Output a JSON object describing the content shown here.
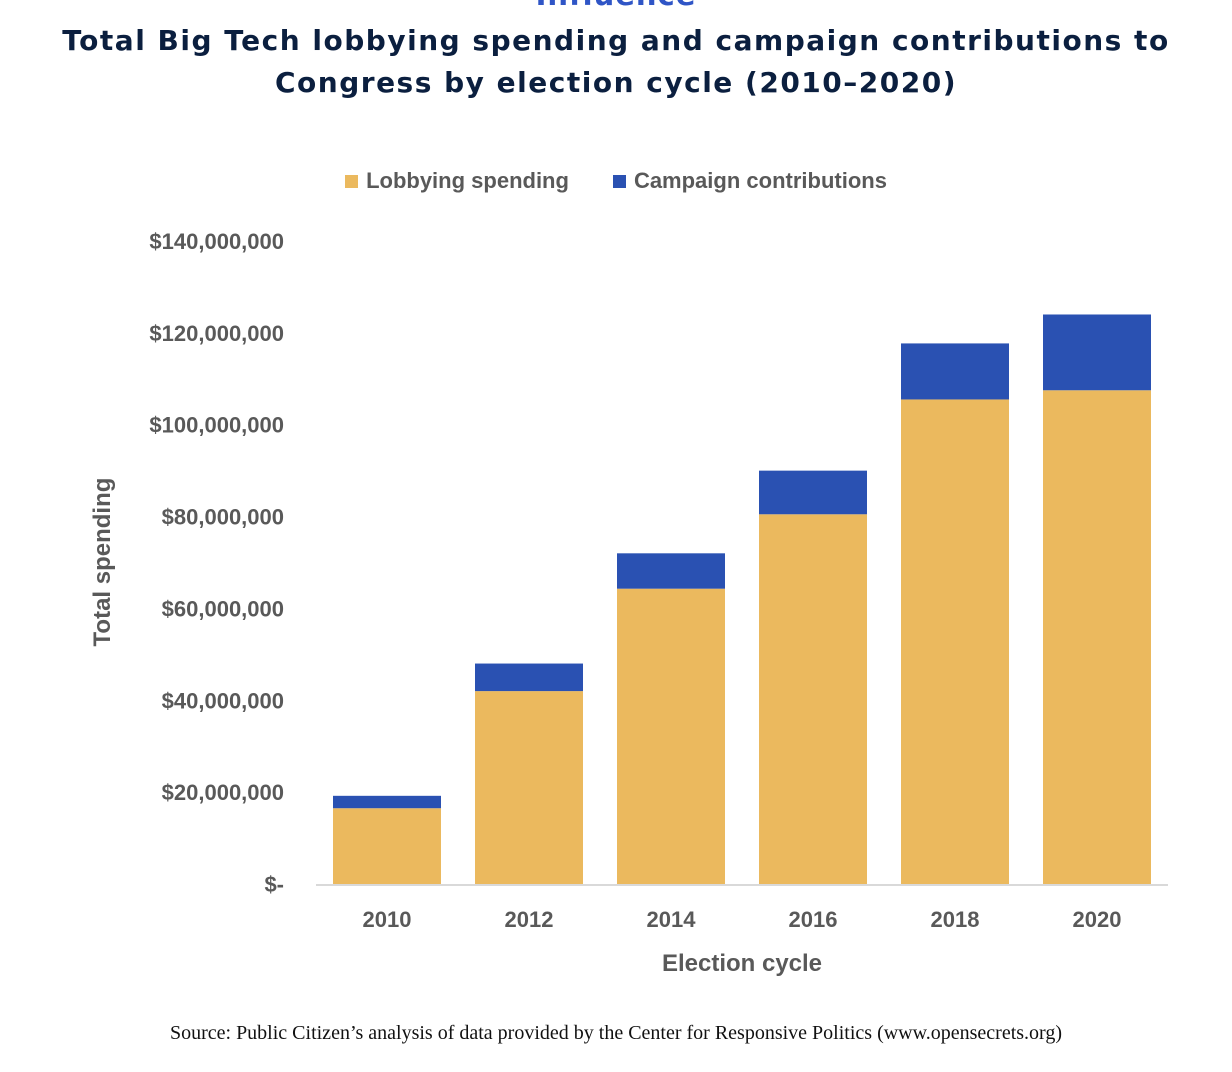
{
  "page": {
    "cut_heading": "Influence",
    "title_line1": "Total Big Tech lobbying spending and campaign contributions to",
    "title_line2": "Congress by election cycle (2010–2020)",
    "source": "Source: Public Citizen’s analysis of data provided by the Center for Responsive Politics (www.opensecrets.org)"
  },
  "chart_data": {
    "type": "bar",
    "stacked": true,
    "categories": [
      "2010",
      "2012",
      "2014",
      "2016",
      "2018",
      "2020"
    ],
    "series": [
      {
        "name": "Lobbying spending",
        "color": "#EBB95E",
        "values": [
          16500000,
          42000000,
          64300000,
          80500000,
          105500000,
          107500000
        ]
      },
      {
        "name": "Campaign contributions",
        "color": "#2A51B2",
        "values": [
          2700000,
          6000000,
          7700000,
          9500000,
          12200000,
          16500000
        ]
      }
    ],
    "xlabel": "Election cycle",
    "ylabel": "Total spending",
    "ylim": [
      0,
      140000000
    ],
    "yticks": [
      0,
      20000000,
      40000000,
      60000000,
      80000000,
      100000000,
      120000000,
      140000000
    ],
    "ytick_labels": [
      "$-",
      "$20,000,000",
      "$40,000,000",
      "$60,000,000",
      "$80,000,000",
      "$100,000,000",
      "$120,000,000",
      "$140,000,000"
    ],
    "legend_position": "top-center",
    "grid": false
  }
}
